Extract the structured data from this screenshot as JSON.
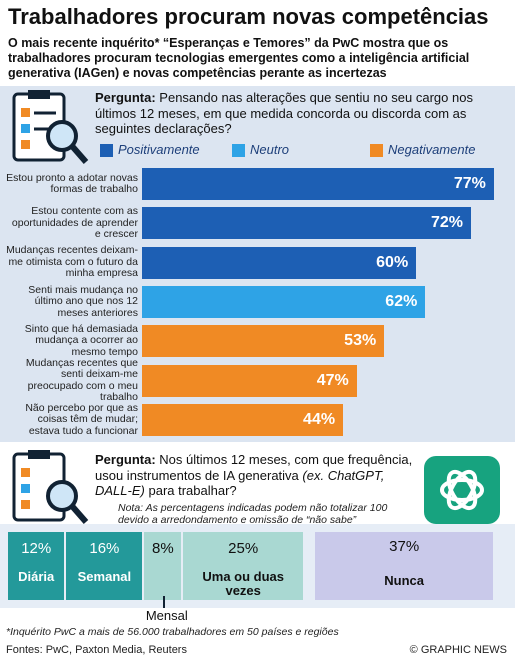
{
  "header": {
    "title": "Trabalhadores procuram novas competências",
    "subtitle": "O mais recente inquérito* “Esperanças e Temores” da PwC mostra que os trabalhadores procuram tecnologias emergentes como a inteligência artificial generativa (IAGen) e novas competências perante as incertezas"
  },
  "question1": {
    "label": "Pergunta:",
    "text": "Pensando nas alterações que sentiu no seu cargo nos últimos 12 meses, em que medida concorda ou discorda com as seguintes declarações?"
  },
  "question2": {
    "label": "Pergunta:",
    "text": "Nos últimos 12 meses, com que frequência, usou instrumentos de IA generativa",
    "example": "(ex. ChatGPT, DALL-E)",
    "text_end": "para trabalhar?",
    "note": "Nota: As percentagens indicadas podem não totalizar 100 devido a arredondamento e omissão de “não sabe”"
  },
  "chart_data": [
    {
      "type": "bar",
      "orientation": "horizontal",
      "categories": [
        "Estou pronto a adotar novas formas de trabalho",
        "Estou contente com as oportunidades de aprender e crescer",
        "Mudanças recentes deixam-me otimista com o futuro da minha empresa",
        "Senti mais mudança no último ano que nos 12 meses anteriores",
        "Sinto que há demasiada mudança a ocorrer ao mesmo tempo",
        "Mudanças recentes que senti deixam-me preocupado com o meu trabalho",
        "Não percebo por que as coisas têm de mudar; estava tudo a funcionar"
      ],
      "series": [
        {
          "name": "Positivamente",
          "color": "#1d5fb4",
          "values": [
            77,
            72,
            60,
            null,
            null,
            null,
            null
          ],
          "value_labels": [
            "77%",
            "72%",
            "60%",
            null,
            null,
            null,
            null
          ]
        },
        {
          "name": "Neutro",
          "color": "#2ea3e6",
          "values": [
            null,
            null,
            null,
            62,
            null,
            null,
            null
          ],
          "value_labels": [
            null,
            null,
            null,
            "62%",
            null,
            null,
            null
          ]
        },
        {
          "name": "Negativamente",
          "color": "#f08a24",
          "values": [
            null,
            null,
            null,
            null,
            53,
            47,
            44
          ],
          "value_labels": [
            null,
            null,
            null,
            null,
            "53%",
            "47%",
            "44%"
          ]
        }
      ]
    },
    {
      "type": "stacked_bar",
      "categories": [
        "Diária",
        "Semanal",
        "Mensal",
        "Uma ou duas vezes",
        "Nunca"
      ],
      "values": [
        12,
        16,
        8,
        25,
        37
      ],
      "value_labels": [
        "12%",
        "16%",
        "8%",
        "25%",
        "37%"
      ],
      "colors": [
        "#23999a",
        "#23999a",
        "#a9d8d2",
        "#a9d8d2",
        "#c9c9ea"
      ]
    }
  ],
  "footer": {
    "footnote": "*Inquérito PwC a mais de 56.000 trabalhadores em 50 países e regiões",
    "sources": "Fontes: PwC, Paxton Media, Reuters",
    "credit": "© GRAPHIC NEWS"
  }
}
